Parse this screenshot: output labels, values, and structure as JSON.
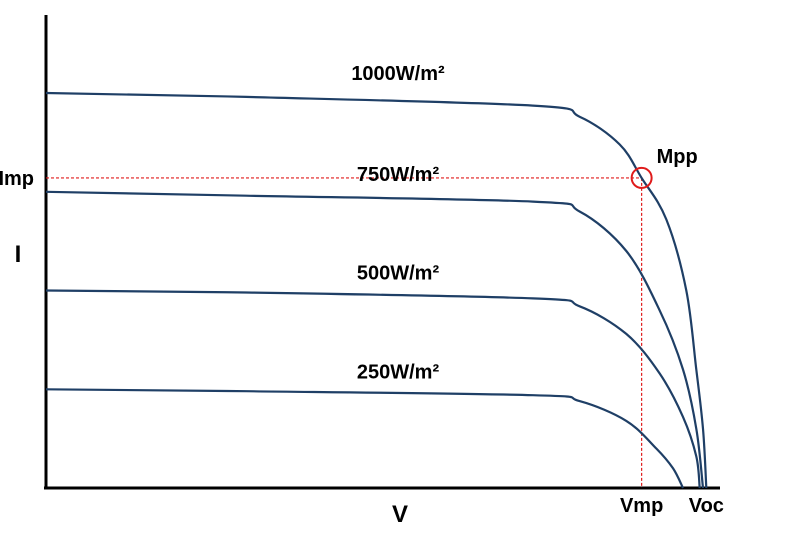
{
  "chart_data": {
    "type": "line",
    "title": "",
    "xlabel": "V",
    "ylabel": "I",
    "x_ticks": [
      "Vmp",
      "Voc"
    ],
    "y_ticks": [
      "Imp"
    ],
    "annotations": [
      "Mpp"
    ],
    "xlim": [
      0,
      1
    ],
    "ylim": [
      0,
      1
    ],
    "x_ticks_values": [
      0.893,
      0.99
    ],
    "y_ticks_values": [
      0.785
    ],
    "mpp": {
      "label": "Mpp",
      "x": 0.893,
      "y": 0.785
    },
    "series": [
      {
        "name": "1000W/m²",
        "points": [
          [
            0,
            1.0
          ],
          [
            0.3,
            0.99
          ],
          [
            0.73,
            0.968
          ],
          [
            0.8,
            0.94
          ],
          [
            0.86,
            0.87
          ],
          [
            0.893,
            0.785
          ],
          [
            0.93,
            0.68
          ],
          [
            0.96,
            0.5
          ],
          [
            0.975,
            0.3
          ],
          [
            0.985,
            0.15
          ],
          [
            0.99,
            0.0
          ]
        ]
      },
      {
        "name": "750W/m²",
        "points": [
          [
            0,
            0.75
          ],
          [
            0.3,
            0.74
          ],
          [
            0.73,
            0.725
          ],
          [
            0.8,
            0.7
          ],
          [
            0.87,
            0.6
          ],
          [
            0.92,
            0.45
          ],
          [
            0.955,
            0.3
          ],
          [
            0.975,
            0.15
          ],
          [
            0.985,
            0.0
          ]
        ]
      },
      {
        "name": "500W/m²",
        "points": [
          [
            0,
            0.5
          ],
          [
            0.3,
            0.495
          ],
          [
            0.73,
            0.48
          ],
          [
            0.8,
            0.46
          ],
          [
            0.87,
            0.39
          ],
          [
            0.92,
            0.29
          ],
          [
            0.955,
            0.18
          ],
          [
            0.975,
            0.08
          ],
          [
            0.98,
            0.0
          ]
        ]
      },
      {
        "name": "250W/m²",
        "points": [
          [
            0,
            0.25
          ],
          [
            0.3,
            0.245
          ],
          [
            0.73,
            0.235
          ],
          [
            0.8,
            0.22
          ],
          [
            0.87,
            0.17
          ],
          [
            0.915,
            0.1
          ],
          [
            0.94,
            0.05
          ],
          [
            0.955,
            0.0
          ]
        ]
      }
    ],
    "grid": false,
    "legend": "none",
    "colors": {
      "curve": "#1f3f66",
      "guide": "#e01b1b",
      "axis": "#000000"
    }
  }
}
